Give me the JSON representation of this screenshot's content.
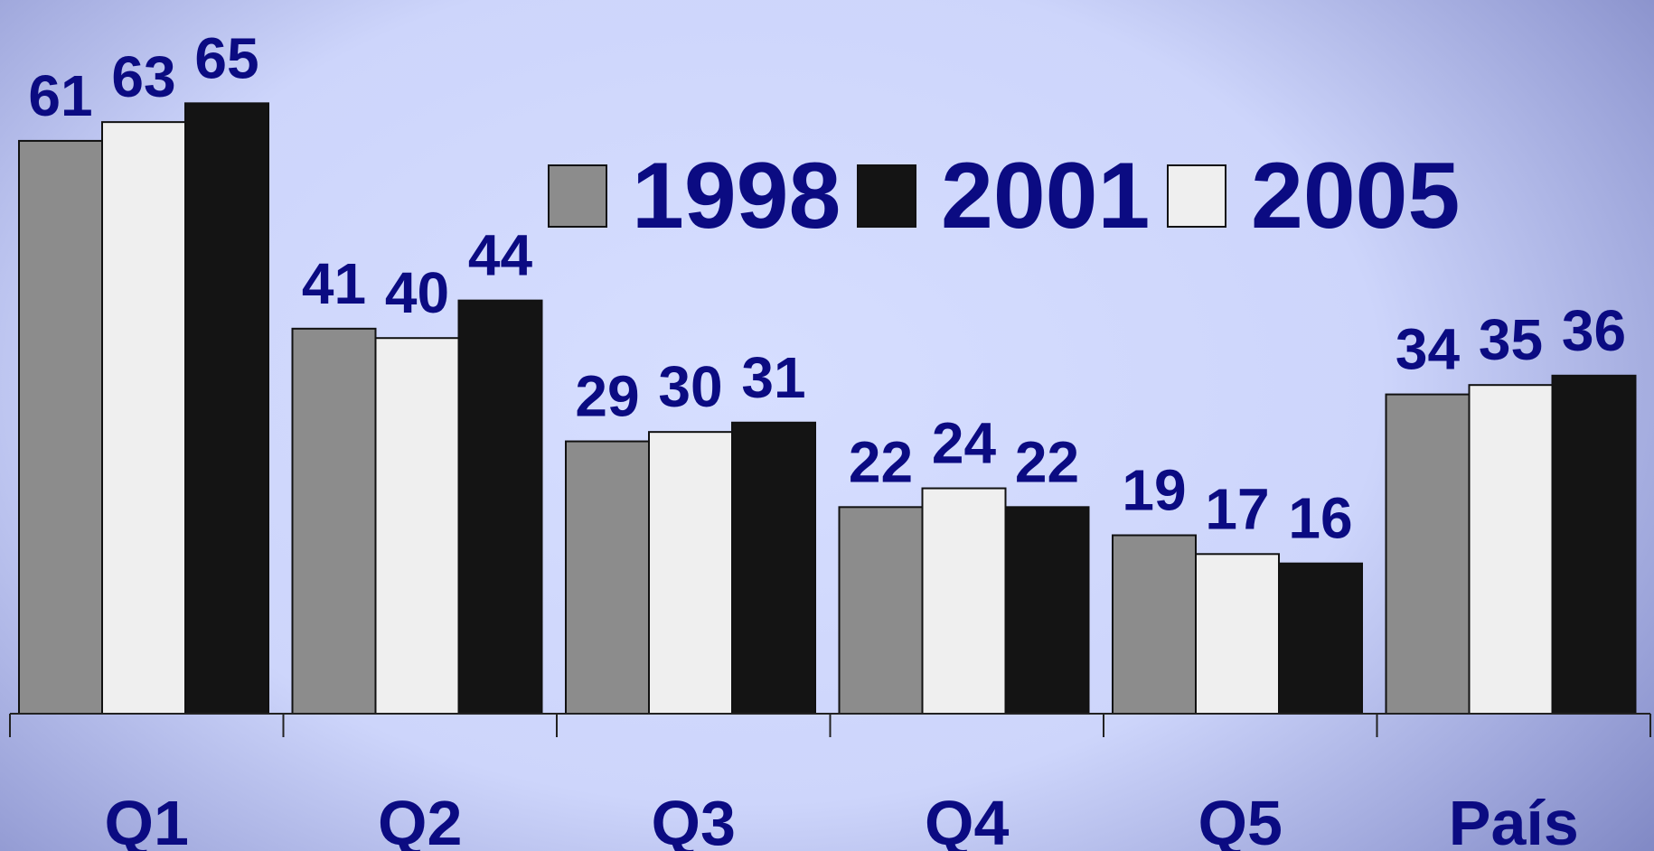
{
  "chart_data": {
    "type": "bar",
    "categories": [
      "Q1",
      "Q2",
      "Q3",
      "Q4",
      "Q5",
      "País"
    ],
    "series": [
      {
        "name": "1998",
        "color": "#8c8c8c",
        "values": [
          61,
          41,
          29,
          22,
          19,
          34
        ]
      },
      {
        "name": "2001",
        "color": "#141414",
        "values": [
          65,
          44,
          31,
          22,
          16,
          36
        ]
      },
      {
        "name": "2005",
        "color": "#efefef",
        "values": [
          63,
          40,
          30,
          24,
          17,
          35
        ]
      }
    ],
    "ylim": [
      0,
      76
    ]
  }
}
